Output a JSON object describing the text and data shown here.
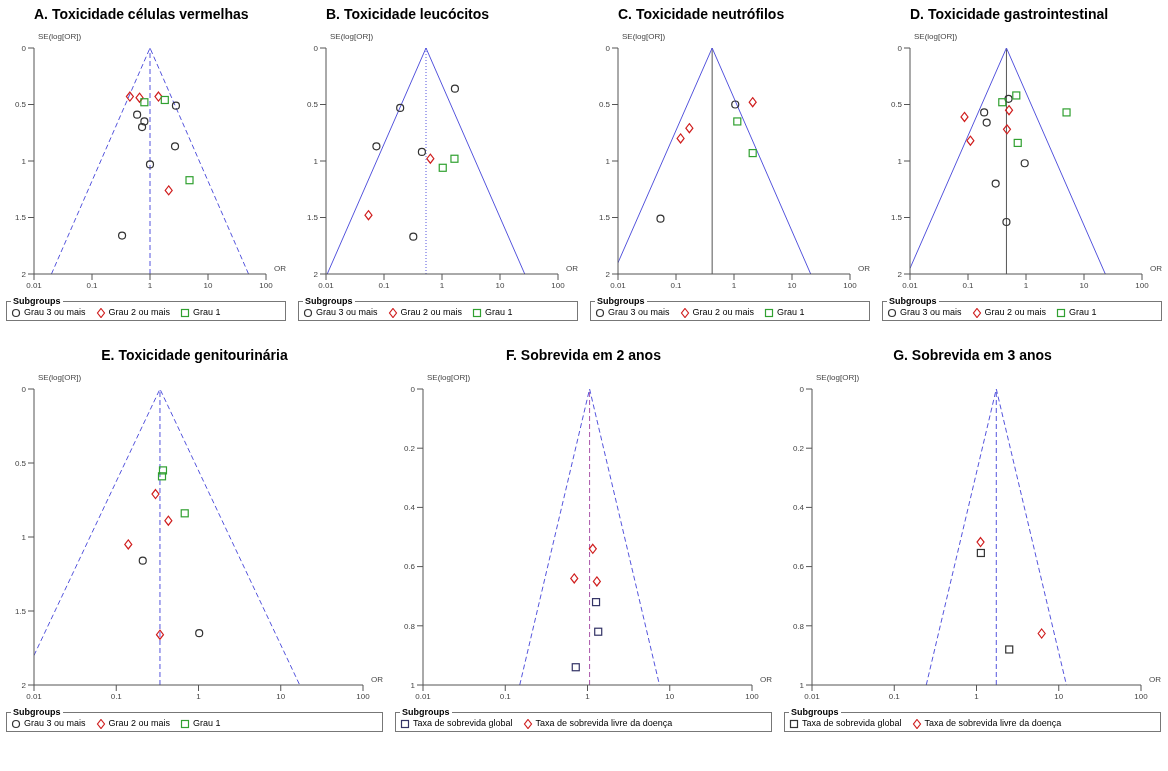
{
  "chart_data": [
    {
      "type": "scatter",
      "title": "A. Toxicidade células vermelhas",
      "xlabel": "OR",
      "ylabel": "SE(log[OR])",
      "legend_title": "Subgroups",
      "legend": "bottom",
      "log": "x",
      "grid": false,
      "xlim": [
        0.01,
        100
      ],
      "xticks": [
        0.01,
        0.1,
        1,
        10,
        100
      ],
      "ylim": [
        2,
        0
      ],
      "yticks": [
        0,
        0.5,
        1,
        1.5,
        2
      ],
      "ref_lines": [
        {
          "axis": "x",
          "value": 1,
          "color": "#5555dd",
          "line_style": "dashed"
        }
      ],
      "series": [
        {
          "type": "line",
          "color": "#5555dd",
          "line_style": "dashed",
          "x": [
            0.02,
            1,
            50
          ],
          "values": [
            2,
            0,
            2
          ]
        },
        {
          "name": "Grau 3 ou mais",
          "color": "#333333",
          "marker": "circle",
          "x": [
            2.8,
            0.6,
            0.8,
            0.73,
            2.7,
            1,
            0.33
          ],
          "values": [
            0.51,
            0.59,
            0.65,
            0.7,
            0.87,
            1.03,
            1.66
          ]
        },
        {
          "name": "Grau 2 ou mais",
          "color": "#d02020",
          "marker": "diamond",
          "x": [
            0.45,
            0.66,
            1.4,
            2.1
          ],
          "values": [
            0.43,
            0.44,
            0.43,
            1.26
          ]
        },
        {
          "name": "Grau 1",
          "color": "#30a030",
          "marker": "square",
          "x": [
            0.8,
            1.8,
            4.8
          ],
          "values": [
            0.48,
            0.46,
            1.17
          ]
        }
      ]
    },
    {
      "type": "scatter",
      "title": "B. Toxicidade leucócitos",
      "xlabel": "OR",
      "ylabel": "SE(log[OR])",
      "legend_title": "Subgroups",
      "legend": "bottom",
      "log": "x",
      "grid": false,
      "xlim": [
        0.01,
        100
      ],
      "xticks": [
        0.01,
        0.1,
        1,
        10,
        100
      ],
      "ylim": [
        2,
        0
      ],
      "yticks": [
        0,
        0.5,
        1,
        1.5,
        2
      ],
      "ref_lines": [
        {
          "axis": "x",
          "value": 0.53,
          "color": "#5555dd",
          "line_style": "dotted"
        }
      ],
      "series": [
        {
          "type": "line",
          "color": "#5555dd",
          "line_style": "solid",
          "x": [
            0.0105,
            0.53,
            26.7
          ],
          "values": [
            2,
            0,
            2
          ]
        },
        {
          "name": "Grau 3 ou mais",
          "color": "#333333",
          "marker": "circle",
          "x": [
            1.67,
            0.19,
            0.074,
            0.45,
            0.32
          ],
          "values": [
            0.36,
            0.53,
            0.87,
            0.92,
            1.67
          ]
        },
        {
          "name": "Grau 2 ou mais",
          "color": "#d02020",
          "marker": "diamond",
          "x": [
            0.63,
            0.054
          ],
          "values": [
            0.98,
            1.48
          ]
        },
        {
          "name": "Grau 1",
          "color": "#30a030",
          "marker": "square",
          "x": [
            1.03,
            1.64
          ],
          "values": [
            1.06,
            0.98
          ]
        }
      ]
    },
    {
      "type": "scatter",
      "title": "C. Toxicidade neutrófilos",
      "xlabel": "OR",
      "ylabel": "SE(log[OR])",
      "legend_title": "Subgroups",
      "legend": "bottom",
      "log": "x",
      "grid": false,
      "xlim": [
        0.01,
        100
      ],
      "xticks": [
        0.01,
        0.1,
        1,
        10,
        100
      ],
      "ylim": [
        2,
        0
      ],
      "yticks": [
        0,
        0.5,
        1,
        1.5,
        2
      ],
      "ref_lines": [
        {
          "axis": "x",
          "value": 0.42,
          "color": "#555555",
          "line_style": "solid"
        }
      ],
      "series": [
        {
          "type": "line",
          "color": "#5555dd",
          "line_style": "solid",
          "x": [
            0.01,
            0.42,
            21
          ],
          "values": [
            1.9,
            0,
            2
          ]
        },
        {
          "name": "Grau 3 ou mais",
          "color": "#333333",
          "marker": "circle",
          "x": [
            1.05,
            0.054
          ],
          "values": [
            0.5,
            1.51
          ]
        },
        {
          "name": "Grau 2 ou mais",
          "color": "#d02020",
          "marker": "diamond",
          "x": [
            2.1,
            0.17,
            0.12
          ],
          "values": [
            0.48,
            0.71,
            0.8
          ]
        },
        {
          "name": "Grau 1",
          "color": "#30a030",
          "marker": "square",
          "x": [
            1.14,
            2.1
          ],
          "values": [
            0.65,
            0.93
          ]
        }
      ]
    },
    {
      "type": "scatter",
      "title": "D. Toxicidade gastrointestinal",
      "xlabel": "OR",
      "ylabel": "SE(log[OR])",
      "legend_title": "Subgroups",
      "legend": "bottom",
      "log": "x",
      "grid": false,
      "xlim": [
        0.01,
        100
      ],
      "xticks": [
        0.01,
        0.1,
        1,
        10,
        100
      ],
      "ylim": [
        2,
        0
      ],
      "yticks": [
        0,
        0.5,
        1,
        1.5,
        2
      ],
      "ref_lines": [
        {
          "axis": "x",
          "value": 0.46,
          "color": "#555555",
          "line_style": "solid"
        }
      ],
      "series": [
        {
          "type": "line",
          "color": "#5555dd",
          "line_style": "solid",
          "x": [
            0.01,
            0.46,
            23.3
          ],
          "values": [
            1.95,
            0,
            2
          ]
        },
        {
          "name": "Grau 3 ou mais",
          "color": "#333333",
          "marker": "circle",
          "x": [
            0.5,
            0.19,
            0.21,
            0.95,
            0.3,
            0.46
          ],
          "values": [
            0.45,
            0.57,
            0.66,
            1.02,
            1.2,
            1.54
          ]
        },
        {
          "name": "Grau 2 ou mais",
          "color": "#d02020",
          "marker": "diamond",
          "x": [
            0.51,
            0.087,
            0.47,
            0.11
          ],
          "values": [
            0.55,
            0.61,
            0.72,
            0.82
          ]
        },
        {
          "name": "Grau 1",
          "color": "#30a030",
          "marker": "square",
          "x": [
            0.68,
            0.39,
            0.72,
            5
          ],
          "values": [
            0.42,
            0.48,
            0.84,
            0.57
          ]
        }
      ]
    },
    {
      "type": "scatter",
      "title": "E. Toxicidade genitourinária",
      "xlabel": "OR",
      "ylabel": "SE(log[OR])",
      "legend_title": "Subgroups",
      "legend": "bottom",
      "log": "x",
      "grid": false,
      "xlim": [
        0.01,
        100
      ],
      "xticks": [
        0.01,
        0.1,
        1,
        10,
        100
      ],
      "ylim": [
        2,
        0
      ],
      "yticks": [
        0,
        0.5,
        1,
        1.5,
        2
      ],
      "ref_lines": [
        {
          "axis": "x",
          "value": 0.34,
          "color": "#5555dd",
          "line_style": "dashed"
        }
      ],
      "series": [
        {
          "type": "line",
          "color": "#5555dd",
          "line_style": "dashed",
          "x": [
            0.01,
            0.34,
            17
          ],
          "values": [
            1.8,
            0,
            2
          ]
        },
        {
          "name": "Grau 3 ou mais",
          "color": "#333333",
          "marker": "circle",
          "x": [
            0.21,
            1.02
          ],
          "values": [
            1.16,
            1.65
          ]
        },
        {
          "name": "Grau 2 ou mais",
          "color": "#d02020",
          "marker": "diamond",
          "x": [
            0.3,
            0.43,
            0.14,
            0.34
          ],
          "values": [
            0.71,
            0.89,
            1.05,
            1.66
          ]
        },
        {
          "name": "Grau 1",
          "color": "#30a030",
          "marker": "square",
          "x": [
            0.37,
            0.36,
            0.68
          ],
          "values": [
            0.55,
            0.59,
            0.84
          ]
        }
      ]
    },
    {
      "type": "scatter",
      "title": "F. Sobrevida em 2 anos",
      "xlabel": "OR",
      "ylabel": "SE(log[OR])",
      "legend_title": "Subgroups",
      "legend": "bottom",
      "log": "x",
      "grid": false,
      "xlim": [
        0.01,
        100
      ],
      "xticks": [
        0.01,
        0.1,
        1,
        10,
        100
      ],
      "ylim": [
        1,
        0
      ],
      "yticks": [
        0,
        0.2,
        0.4,
        0.6,
        0.8,
        1
      ],
      "ref_lines": [
        {
          "axis": "x",
          "value": 1.06,
          "color": "#aa55aa",
          "line_style": "dashed"
        }
      ],
      "series": [
        {
          "type": "line",
          "color": "#5555dd",
          "line_style": "dashed",
          "x": [
            0.15,
            1.06,
            7.5
          ],
          "values": [
            1,
            0,
            1
          ]
        },
        {
          "name": "Taxa de sobrevida global",
          "color": "#333366",
          "marker": "square",
          "x": [
            1.27,
            1.35,
            0.72
          ],
          "values": [
            0.72,
            0.82,
            0.94
          ]
        },
        {
          "name": "Taxa de sobrevida livre da doença",
          "color": "#d02020",
          "marker": "diamond",
          "x": [
            1.16,
            0.69,
            1.3
          ],
          "values": [
            0.54,
            0.64,
            0.65
          ]
        }
      ]
    },
    {
      "type": "scatter",
      "title": "G. Sobrevida em 3 anos",
      "xlabel": "OR",
      "ylabel": "SE(log[OR])",
      "legend_title": "Subgroups",
      "legend": "bottom",
      "log": "x",
      "grid": false,
      "xlim": [
        0.01,
        100
      ],
      "xticks": [
        0.01,
        0.1,
        1,
        10,
        100
      ],
      "ylim": [
        1,
        0
      ],
      "yticks": [
        0,
        0.2,
        0.4,
        0.6,
        0.8,
        1
      ],
      "ref_lines": [
        {
          "axis": "x",
          "value": 1.74,
          "color": "#5555dd",
          "line_style": "dashed"
        }
      ],
      "series": [
        {
          "type": "line",
          "color": "#5555dd",
          "line_style": "dashed",
          "x": [
            0.245,
            1.74,
            12.4
          ],
          "values": [
            1,
            0,
            1
          ]
        },
        {
          "name": "Taxa de sobrevida global",
          "color": "#333333",
          "marker": "square",
          "x": [
            1.13,
            2.5
          ],
          "values": [
            0.554,
            0.88
          ]
        },
        {
          "name": "Taxa de sobrevida livre da doença",
          "color": "#d02020",
          "marker": "diamond",
          "x": [
            1.12,
            6.2
          ],
          "values": [
            0.517,
            0.826
          ]
        }
      ]
    }
  ]
}
